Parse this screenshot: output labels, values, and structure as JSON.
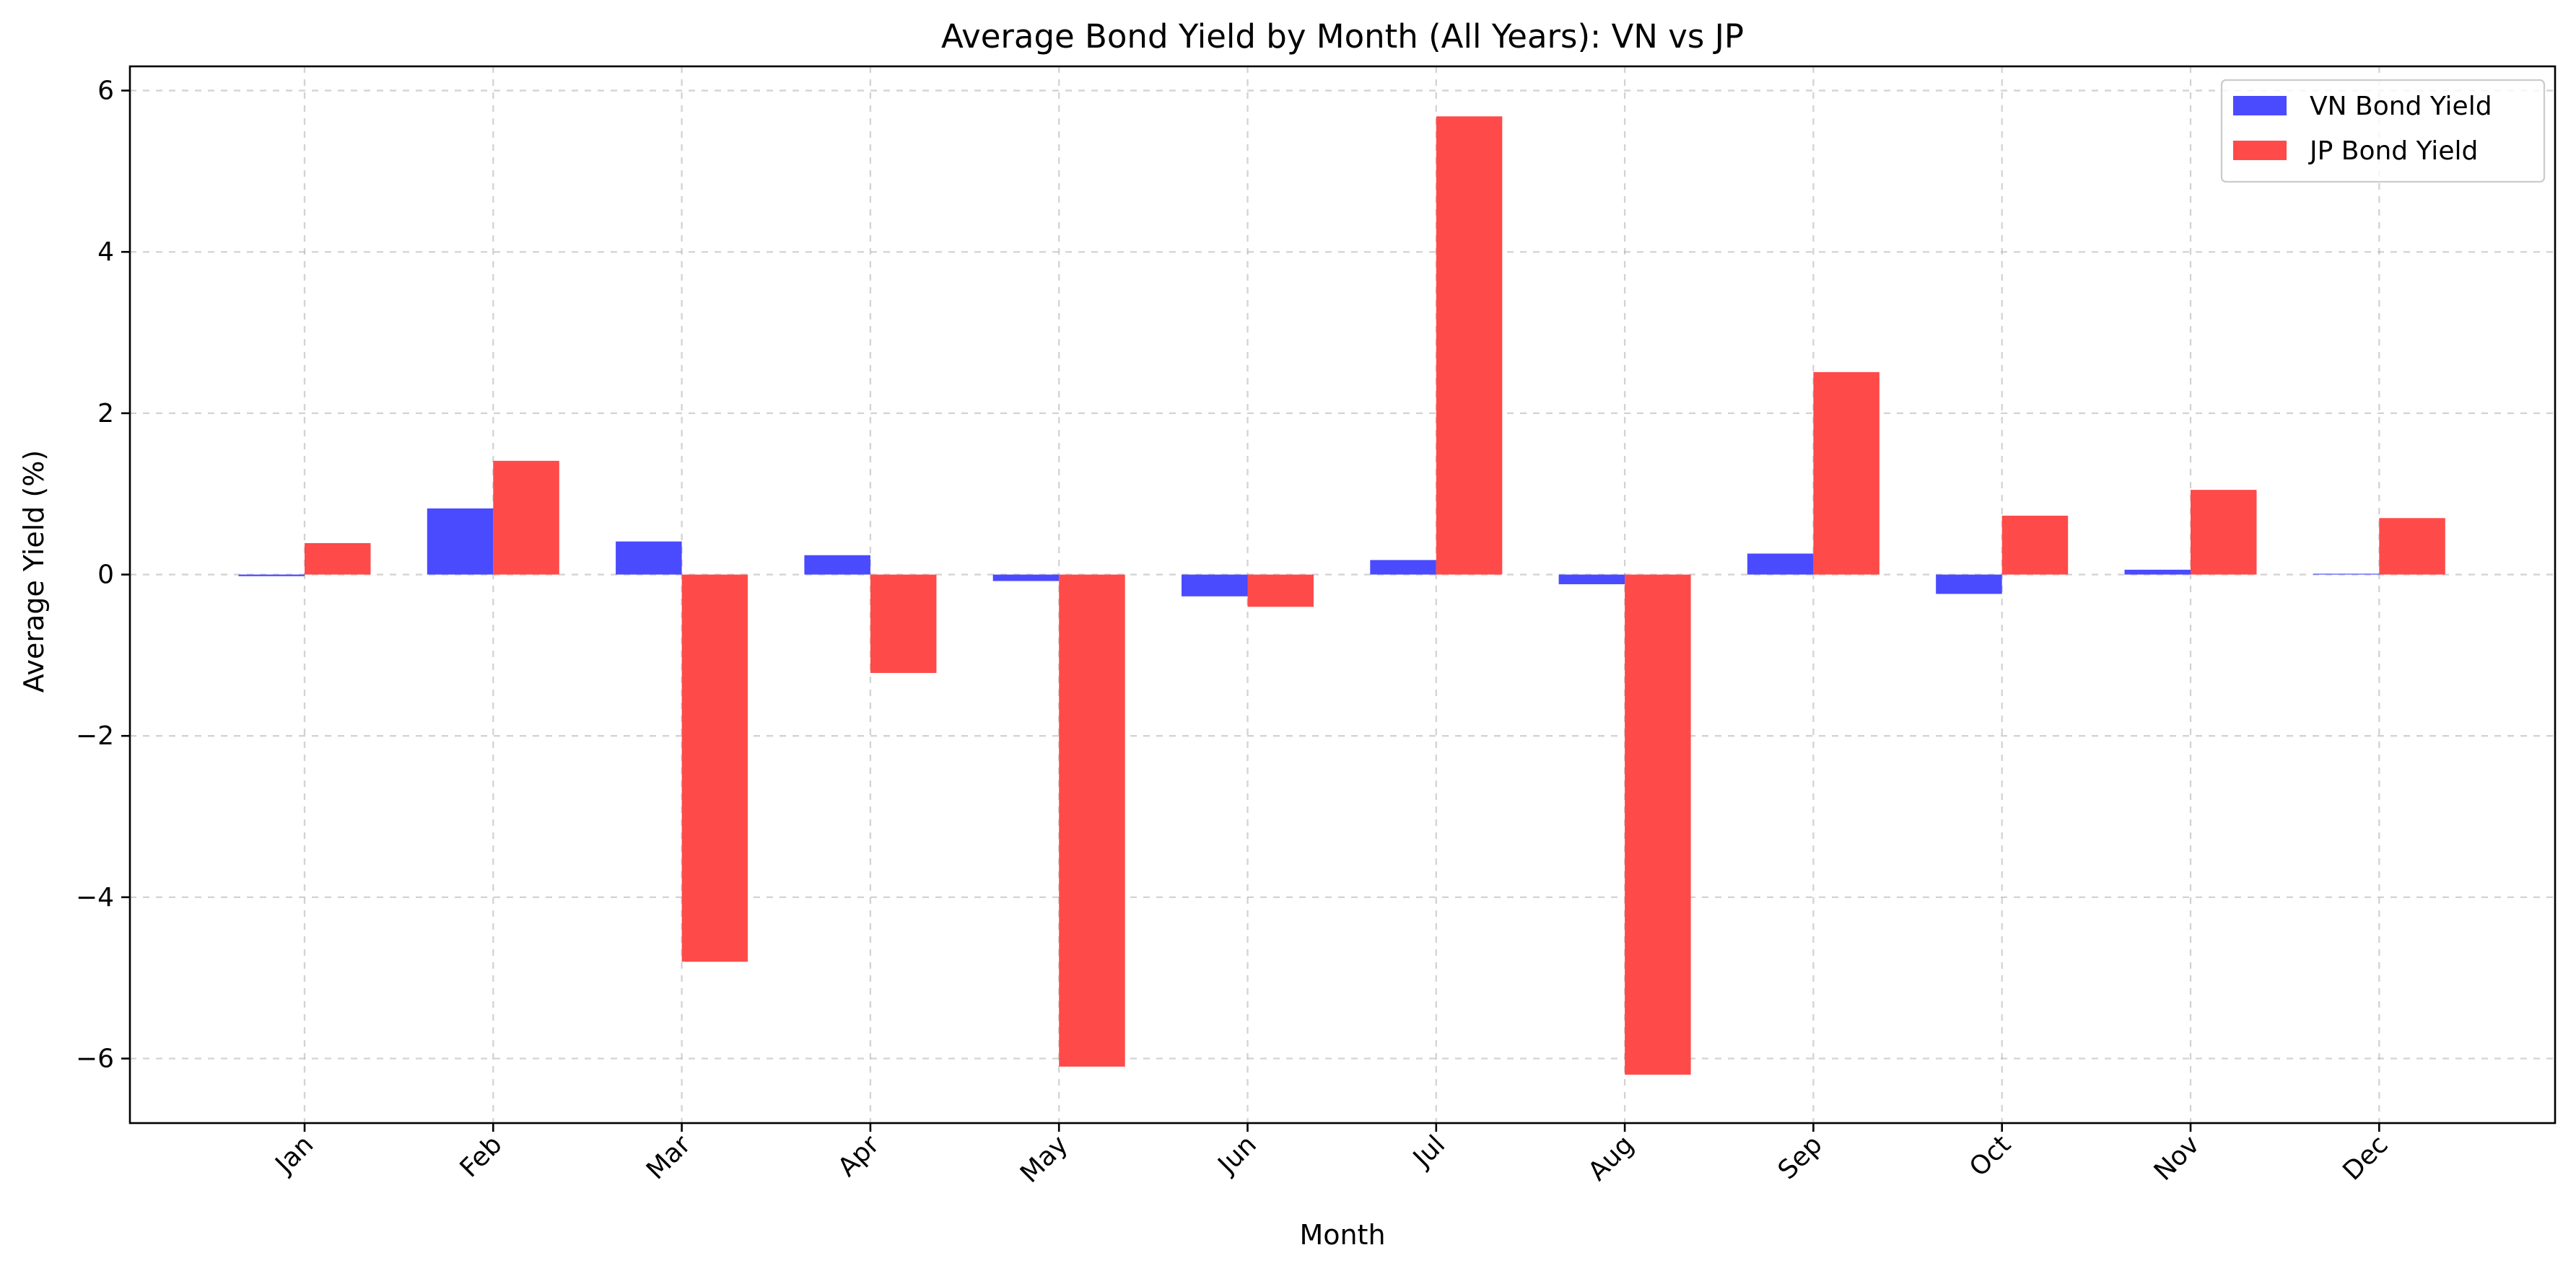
{
  "chart_data": {
    "type": "bar",
    "title": "Average Bond Yield by Month (All Years): VN vs JP",
    "xlabel": "Month",
    "ylabel": "Average Yield (%)",
    "categories": [
      "Jan",
      "Feb",
      "Mar",
      "Apr",
      "May",
      "Jun",
      "Jul",
      "Aug",
      "Sep",
      "Oct",
      "Nov",
      "Dec"
    ],
    "series": [
      {
        "name": "VN Bond Yield",
        "color": "#4a4aff",
        "values": [
          -0.02,
          0.82,
          0.41,
          0.24,
          -0.08,
          -0.27,
          0.18,
          -0.12,
          0.26,
          -0.24,
          0.06,
          0.01
        ]
      },
      {
        "name": "JP Bond Yield",
        "color": "#ff4a4a",
        "values": [
          0.39,
          1.41,
          -4.8,
          -1.22,
          -6.1,
          -0.4,
          5.68,
          -6.2,
          2.51,
          0.73,
          1.05,
          0.7
        ]
      }
    ],
    "ylim": [
      -6.8,
      6.3
    ],
    "yticks": [
      -6,
      -4,
      -2,
      0,
      2,
      4,
      6
    ],
    "yticklabels": [
      "−6",
      "−4",
      "−2",
      "0",
      "2",
      "4",
      "6"
    ],
    "grid": true,
    "legend_position": "top-right"
  }
}
